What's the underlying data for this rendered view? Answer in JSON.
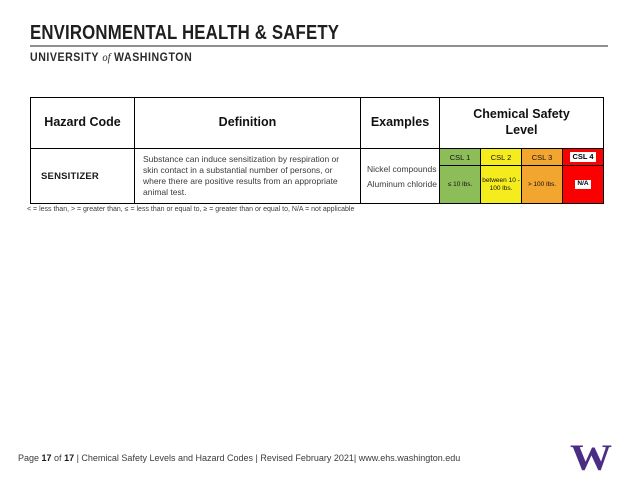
{
  "header": {
    "title": "ENVIRONMENTAL HEALTH & SAFETY",
    "university": "UNIVERSITY ",
    "of": "of",
    "washington": " WASHINGTON"
  },
  "table": {
    "columns": [
      "Hazard Code",
      "Definition",
      "Examples",
      "Chemical Safety\nLevel"
    ],
    "row": {
      "hazard_code": "SENSITIZER",
      "definition": "Substance can induce sensitization by respiration or skin contact in a substantial number of persons, or where there are positive results from an appropriate animal test.",
      "examples": [
        "Nickel compounds",
        "Aluminum chloride"
      ],
      "csl": [
        {
          "label": "CSL 1",
          "value": "≤ 10 lbs.",
          "color": "#8dbd58",
          "highlight": false
        },
        {
          "label": "CSL 2",
          "value": "between 10 - 100 lbs.",
          "color": "#f5ec1d",
          "highlight": false
        },
        {
          "label": "CSL 3",
          "value": "> 100 lbs.",
          "color": "#f2a52f",
          "highlight": false
        },
        {
          "label": "CSL 4",
          "value": "N/A",
          "color": "#fa0000",
          "highlight": true
        }
      ]
    }
  },
  "footnote": "< = less than, > = greater than, ≤ = less than or equal to, ≥ = greater than or equal to, N/A = not applicable",
  "footer": {
    "prefix": "Page ",
    "page": "17",
    "mid": " of ",
    "total": "17",
    "rest": " | Chemical Safety Levels and Hazard Codes | Revised February 2021| www.ehs.washington.edu"
  },
  "logo": {
    "letter": "W"
  },
  "colors": {
    "uw_purple": "#4b2e83",
    "csl1_green": "#8dbd58",
    "csl2_yellow": "#f5ec1d",
    "csl3_orange": "#f2a52f",
    "csl4_red": "#fa0000"
  }
}
